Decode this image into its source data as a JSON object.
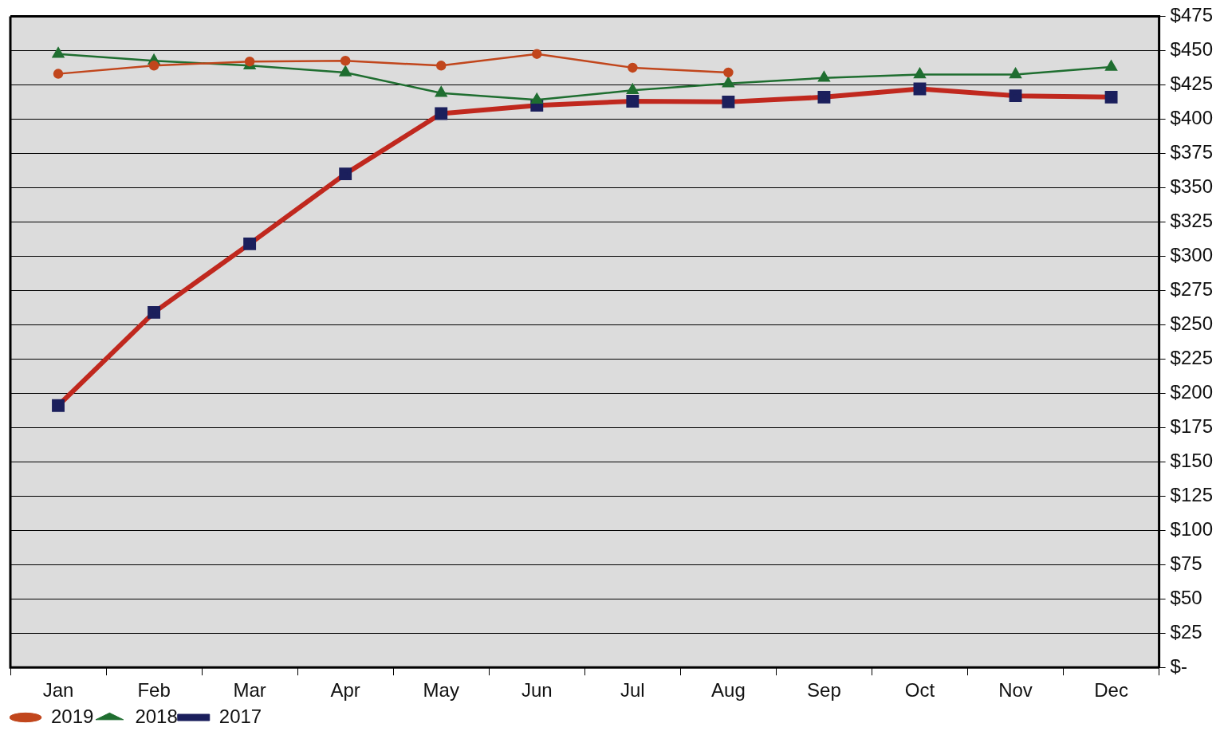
{
  "chart_data": {
    "type": "line",
    "categories": [
      "Jan",
      "Feb",
      "Mar",
      "Apr",
      "May",
      "Jun",
      "Jul",
      "Aug",
      "Sep",
      "Oct",
      "Nov",
      "Dec"
    ],
    "series": [
      {
        "name": "2019",
        "color": "#c1461c",
        "marker": "circle",
        "values": [
          433,
          439,
          442,
          442.5,
          439,
          447.5,
          437.5,
          434,
          null,
          null,
          null,
          null
        ]
      },
      {
        "name": "2018",
        "color": "#1f6e30",
        "marker": "triangle",
        "values": [
          447.5,
          442.5,
          439,
          434,
          419,
          414,
          421,
          426,
          430,
          432.5,
          432.5,
          438
        ]
      },
      {
        "name": "2017",
        "color": "#c0281e",
        "marker": "square",
        "values": [
          191,
          259,
          309,
          360,
          404,
          410,
          413,
          412.5,
          416,
          422,
          417,
          416
        ]
      }
    ],
    "ylim": [
      0,
      475
    ],
    "yticks": [
      {
        "value": 0,
        "label": "$-"
      },
      {
        "value": 25,
        "label": "$25"
      },
      {
        "value": 50,
        "label": "$50"
      },
      {
        "value": 75,
        "label": "$75"
      },
      {
        "value": 100,
        "label": "$100"
      },
      {
        "value": 125,
        "label": "$125"
      },
      {
        "value": 150,
        "label": "$150"
      },
      {
        "value": 175,
        "label": "$175"
      },
      {
        "value": 200,
        "label": "$200"
      },
      {
        "value": 225,
        "label": "$225"
      },
      {
        "value": 250,
        "label": "$250"
      },
      {
        "value": 275,
        "label": "$275"
      },
      {
        "value": 300,
        "label": "$300"
      },
      {
        "value": 325,
        "label": "$325"
      },
      {
        "value": 350,
        "label": "$350"
      },
      {
        "value": 375,
        "label": "$375"
      },
      {
        "value": 400,
        "label": "$400"
      },
      {
        "value": 425,
        "label": "$425"
      },
      {
        "value": 450,
        "label": "$450"
      },
      {
        "value": 475,
        "label": "$475"
      }
    ],
    "grid": "y",
    "legend": "bottom",
    "line_style": "solid"
  }
}
